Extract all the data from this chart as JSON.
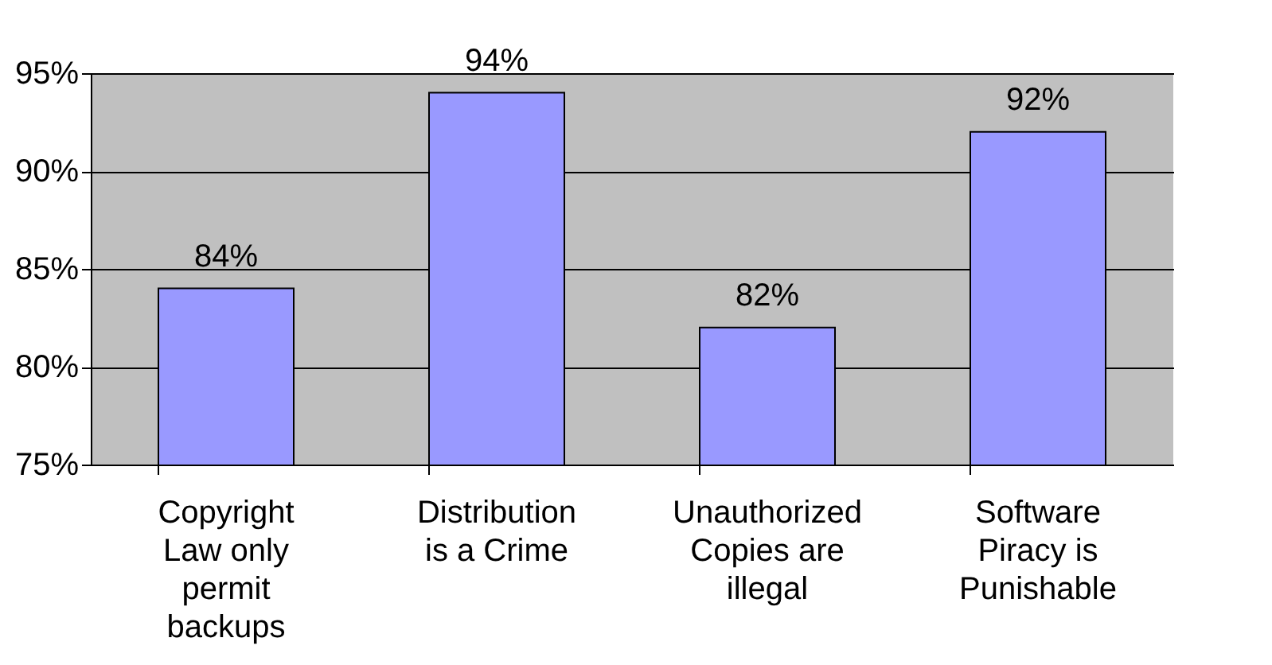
{
  "chart_data": {
    "type": "bar",
    "categories": [
      "Copyright Law only permit backups",
      "Distribution is a Crime",
      "Unauthorized Copies are illegal",
      "Software Piracy is Punishable"
    ],
    "values": [
      84,
      94,
      82,
      92
    ],
    "color": "#9999ff",
    "value_labels": [
      "84%",
      "94%",
      "82%",
      "92%"
    ],
    "ylim": [
      75,
      95
    ],
    "yticks": [
      {
        "value": 75,
        "label": "75%"
      },
      {
        "value": 80,
        "label": "80%"
      },
      {
        "value": 85,
        "label": "85%"
      },
      {
        "value": 90,
        "label": "90%"
      },
      {
        "value": 95,
        "label": "95%"
      }
    ],
    "grid": "y"
  }
}
